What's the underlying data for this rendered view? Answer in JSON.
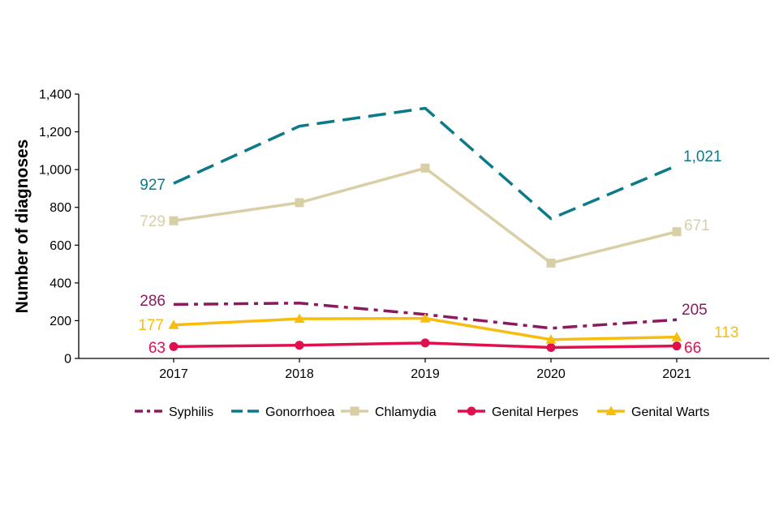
{
  "chart_data": {
    "type": "line",
    "title": "",
    "xlabel": "",
    "ylabel": "Number of diagnoses",
    "ylim": [
      0,
      1400
    ],
    "yticks": [
      0,
      200,
      400,
      600,
      800,
      1000,
      1200,
      1400
    ],
    "ytick_labels": [
      "0",
      "200",
      "400",
      "600",
      "800",
      "1,000",
      "1,200",
      "1,400"
    ],
    "categories": [
      "2017",
      "2018",
      "2019",
      "2020",
      "2021"
    ],
    "grid": false,
    "legend_position": "bottom",
    "series": [
      {
        "name": "Syphilis",
        "values": [
          286,
          293,
          233,
          160,
          205
        ],
        "color": "#8B1A5E",
        "dash": "dashdot",
        "marker": "none",
        "start_label": "286",
        "end_label": "205"
      },
      {
        "name": "Gonorrhoea",
        "values": [
          927,
          1230,
          1325,
          740,
          1021
        ],
        "color": "#0B7A8A",
        "dash": "longdash",
        "marker": "none",
        "start_label": "927",
        "end_label": "1,021"
      },
      {
        "name": "Chlamydia",
        "values": [
          729,
          825,
          1008,
          505,
          671
        ],
        "color": "#D9CFA6",
        "dash": "solid",
        "marker": "square",
        "start_label": "729",
        "end_label": "671"
      },
      {
        "name": "Genital Herpes",
        "values": [
          63,
          70,
          82,
          58,
          66
        ],
        "color": "#E0104F",
        "dash": "solid",
        "marker": "circle",
        "start_label": "63",
        "end_label": "66"
      },
      {
        "name": "Genital Warts",
        "values": [
          177,
          210,
          212,
          100,
          113
        ],
        "color": "#F6BD0F",
        "dash": "solid",
        "marker": "triangle",
        "start_label": "177",
        "end_label": "113"
      }
    ]
  }
}
